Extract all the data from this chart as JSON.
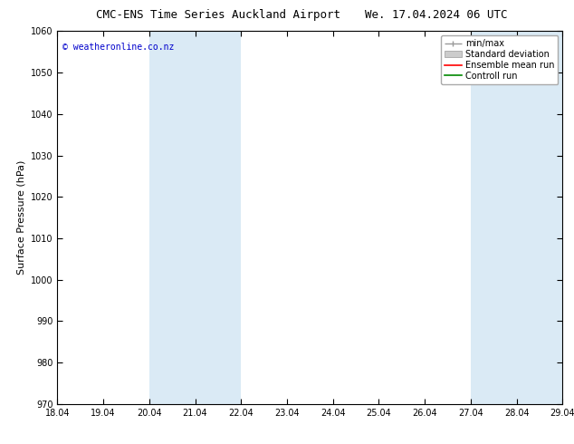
{
  "title_left": "CMC-ENS Time Series Auckland Airport",
  "title_right": "We. 17.04.2024 06 UTC",
  "ylabel": "Surface Pressure (hPa)",
  "ylim": [
    970,
    1060
  ],
  "yticks": [
    970,
    980,
    990,
    1000,
    1010,
    1020,
    1030,
    1040,
    1050,
    1060
  ],
  "x_labels": [
    "18.04",
    "19.04",
    "20.04",
    "21.04",
    "22.04",
    "23.04",
    "24.04",
    "25.04",
    "26.04",
    "27.04",
    "28.04",
    "29.04"
  ],
  "x_positions": [
    0,
    1,
    2,
    3,
    4,
    5,
    6,
    7,
    8,
    9,
    10,
    11
  ],
  "shade_bands": [
    {
      "xmin": 2,
      "xmax": 4
    },
    {
      "xmin": 9,
      "xmax": 11
    }
  ],
  "shade_color": "#daeaf5",
  "background_color": "#ffffff",
  "watermark": "© weatheronline.co.nz",
  "watermark_color": "#0000cc",
  "title_fontsize": 9,
  "axis_label_fontsize": 8,
  "tick_fontsize": 7,
  "legend_fontsize": 7,
  "minmax_color": "#999999",
  "std_color": "#cccccc",
  "ensemble_color": "#ff0000",
  "control_color": "#008800"
}
